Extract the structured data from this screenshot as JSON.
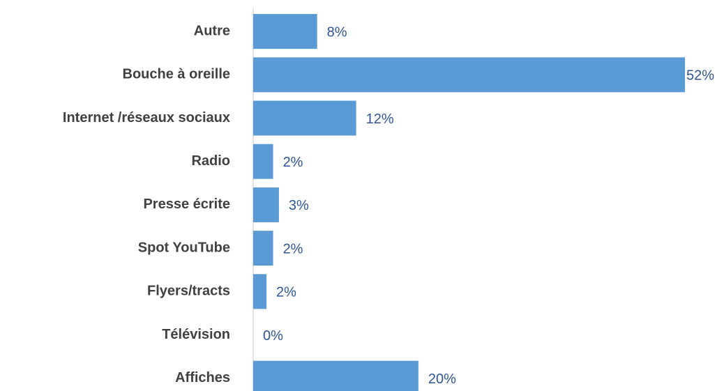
{
  "chart_data": {
    "type": "bar",
    "orientation": "horizontal",
    "categories": [
      "Autre",
      "Bouche à oreille",
      "Internet /réseaux sociaux",
      "Radio",
      "Presse écrite",
      "Spot YouTube",
      "Flyers/tracts",
      "Télévision",
      "Affiches"
    ],
    "values": [
      7.7,
      52,
      12.4,
      2.4,
      3.1,
      2.4,
      1.6,
      0,
      19.9
    ],
    "value_labels": [
      "8%",
      "52%",
      "12%",
      "2%",
      "3%",
      "2%",
      "2%",
      "0%",
      "20%"
    ],
    "color": "#5b9bd5"
  }
}
